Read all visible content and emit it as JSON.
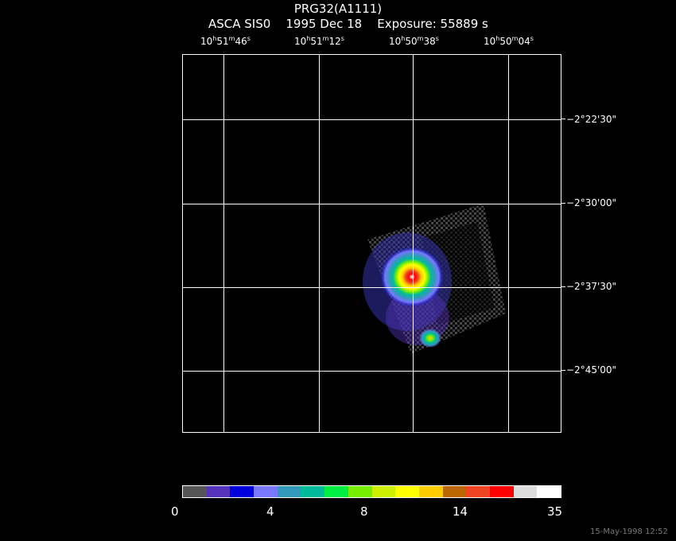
{
  "title": "PRG32(A1111)",
  "subtitle": "ASCA SIS0    1995 Dec 18    Exposure: 55889 s",
  "ra_labels": [
    {
      "h": "10",
      "m": "51",
      "s": "46"
    },
    {
      "h": "10",
      "m": "51",
      "s": "12"
    },
    {
      "h": "10",
      "m": "50",
      "s": "38"
    },
    {
      "h": "10",
      "m": "50",
      "s": "04"
    }
  ],
  "dec_labels": [
    "−2°22'30\"",
    "−2°30'00\"",
    "−2°37'30\"",
    "−2°45'00\""
  ],
  "colorbar": {
    "labels": [
      "0",
      "4",
      "8",
      "14",
      "35"
    ],
    "colors": [
      "#555555",
      "#5533bb",
      "#0000dd",
      "#7777ff",
      "#3399bb",
      "#00bb99",
      "#00ee44",
      "#77ee00",
      "#ccee00",
      "#ffff00",
      "#ffcc00",
      "#bb6600",
      "#ee4422",
      "#ff0000",
      "#dddddd",
      "#ffffff"
    ]
  },
  "timestamp": "15-May-1998 12:52"
}
